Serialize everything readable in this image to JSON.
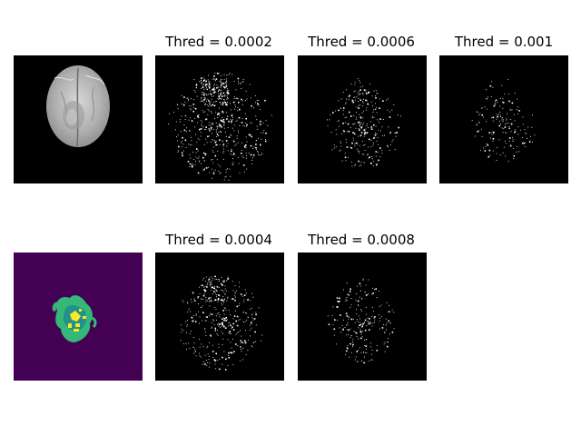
{
  "figure": {
    "panels": [
      {
        "id": "mri",
        "title": ""
      },
      {
        "id": "t0002",
        "title": "Thred = 0.0002",
        "density": 1.0
      },
      {
        "id": "t0006",
        "title": "Thred = 0.0006",
        "density": 0.45
      },
      {
        "id": "t001",
        "title": "Thred = 0.001",
        "density": 0.25
      },
      {
        "id": "seg",
        "title": ""
      },
      {
        "id": "t0004",
        "title": "Thred = 0.0004",
        "density": 0.65
      },
      {
        "id": "t0008",
        "title": "Thred = 0.0008",
        "density": 0.35
      }
    ],
    "colors": {
      "thresh_bg": "#000000",
      "thresh_dots": "#ffffff",
      "seg_bg": "#440154",
      "seg_teal": "#21918c",
      "seg_green": "#35b779",
      "seg_yellow": "#fde725"
    }
  }
}
